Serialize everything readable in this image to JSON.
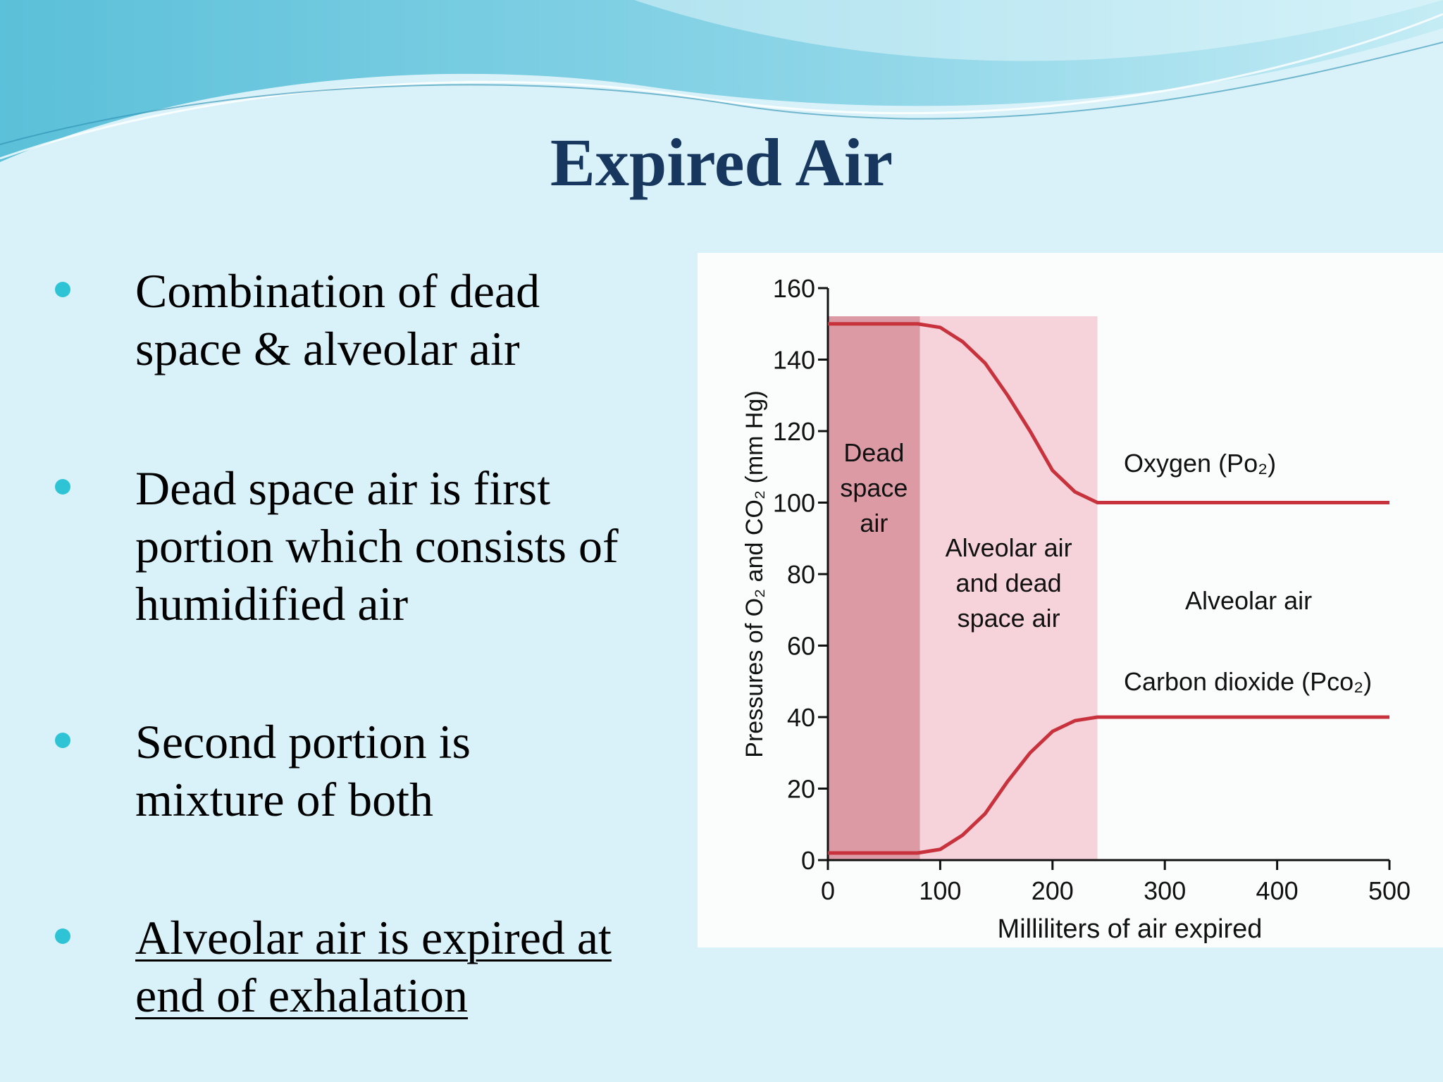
{
  "slide": {
    "title": "Expired Air",
    "bullets": [
      {
        "lines": [
          "Combination of dead",
          "space & alveolar air"
        ]
      },
      {
        "lines": [
          "Dead space air is first",
          "portion which consists of",
          "humidified air"
        ]
      },
      {
        "lines": [
          "Second portion is",
          "mixture of both"
        ]
      },
      {
        "lines": [
          "Alveolar air is expired at",
          "end of exhalation"
        ],
        "underline": true
      }
    ]
  },
  "chart_data": {
    "type": "line",
    "x_label": "Milliliters of air expired",
    "y_label": "Pressures of O₂ and CO₂ (mm Hg)",
    "x": [
      0,
      80,
      100,
      120,
      140,
      160,
      180,
      200,
      220,
      240,
      300,
      400,
      500
    ],
    "series": [
      {
        "name": "Oxygen (Po₂)",
        "color": "#c8323c",
        "values": [
          150,
          150,
          149,
          145,
          139,
          130,
          120,
          109,
          103,
          100,
          100,
          100,
          100
        ]
      },
      {
        "name": "Carbon dioxide (Pco₂)",
        "color": "#c8323c",
        "values": [
          2,
          2,
          3,
          7,
          13,
          22,
          30,
          36,
          39,
          40,
          40,
          40,
          40
        ]
      }
    ],
    "regions": [
      {
        "label_lines": [
          "Dead",
          "space",
          "air"
        ],
        "x": [
          0,
          82
        ],
        "color": "#dc9ba4"
      },
      {
        "label_lines": [
          "Alveolar air",
          "and dead",
          "space air"
        ],
        "x": [
          82,
          240
        ],
        "color": "#f6d3da"
      }
    ],
    "annotations": [
      "Alveolar air"
    ],
    "xlim": [
      0,
      500
    ],
    "xticks": [
      0,
      100,
      200,
      300,
      400,
      500
    ],
    "ylim": [
      0,
      160
    ],
    "yticks": [
      0,
      20,
      40,
      60,
      80,
      100,
      120,
      140,
      160
    ]
  }
}
